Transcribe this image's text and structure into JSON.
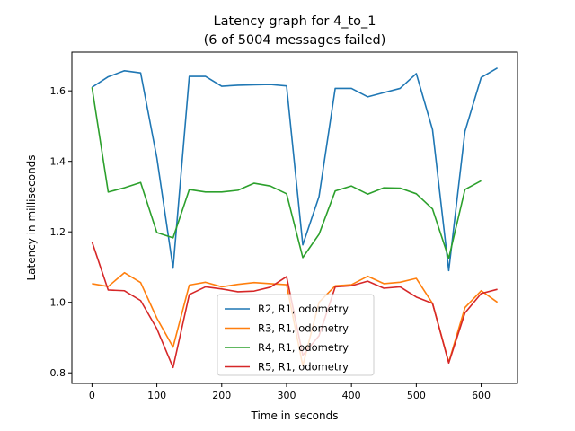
{
  "chart_data": {
    "type": "line",
    "title": "Latency graph for 4_to_1",
    "subtitle": "(6 of 5004 messages failed)",
    "xlabel": "Time in seconds",
    "ylabel": "Latency in milliseconds",
    "xlim": [
      -31,
      656
    ],
    "ylim": [
      0.77,
      1.71
    ],
    "xticks": [
      0,
      100,
      200,
      300,
      400,
      500,
      600
    ],
    "xtick_labels": [
      "0",
      "100",
      "200",
      "300",
      "400",
      "500",
      "600"
    ],
    "yticks": [
      0.8,
      1.0,
      1.2,
      1.4,
      1.6
    ],
    "ytick_labels": [
      "0.8",
      "1.0",
      "1.2",
      "1.4",
      "1.6"
    ],
    "grid": false,
    "legend_position": "bottom-center",
    "x": [
      0,
      25,
      50,
      75,
      100,
      125,
      150,
      175,
      200,
      225,
      250,
      275,
      300,
      325,
      350,
      375,
      400,
      425,
      450,
      475,
      500,
      525,
      550,
      575,
      600,
      625
    ],
    "series": [
      {
        "name": "R2, R1, odometry",
        "color": "#1f77b4",
        "values": [
          1.61,
          1.64,
          1.657,
          1.651,
          1.41,
          1.097,
          1.641,
          1.641,
          1.613,
          1.616,
          1.617,
          1.618,
          1.614,
          1.163,
          1.3,
          1.607,
          1.607,
          1.583,
          1.595,
          1.607,
          1.649,
          1.49,
          1.09,
          1.485,
          1.638,
          1.665
        ]
      },
      {
        "name": "R3, R1, odometry",
        "color": "#ff7f0e",
        "values": [
          1.053,
          1.045,
          1.084,
          1.056,
          0.955,
          0.873,
          1.049,
          1.057,
          1.044,
          1.051,
          1.056,
          1.053,
          1.05,
          0.82,
          1.0,
          1.047,
          1.05,
          1.074,
          1.053,
          1.057,
          1.068,
          0.997,
          0.83,
          0.985,
          1.033,
          1.0
        ]
      },
      {
        "name": "R4, R1, odometry",
        "color": "#2ca02c",
        "values": [
          1.61,
          1.313,
          1.325,
          1.34,
          1.198,
          1.183,
          1.32,
          1.313,
          1.313,
          1.318,
          1.338,
          1.33,
          1.308,
          1.127,
          1.193,
          1.316,
          1.33,
          1.307,
          1.325,
          1.324,
          1.308,
          1.265,
          1.125,
          1.32,
          1.345,
          null
        ]
      },
      {
        "name": "R5, R1, odometry",
        "color": "#d62728",
        "values": [
          1.172,
          1.035,
          1.033,
          1.005,
          0.925,
          0.815,
          1.022,
          1.044,
          1.038,
          1.03,
          1.032,
          1.043,
          1.073,
          0.85,
          0.905,
          1.044,
          1.047,
          1.06,
          1.04,
          1.044,
          1.015,
          0.997,
          0.828,
          0.97,
          1.025,
          1.037
        ]
      }
    ]
  }
}
